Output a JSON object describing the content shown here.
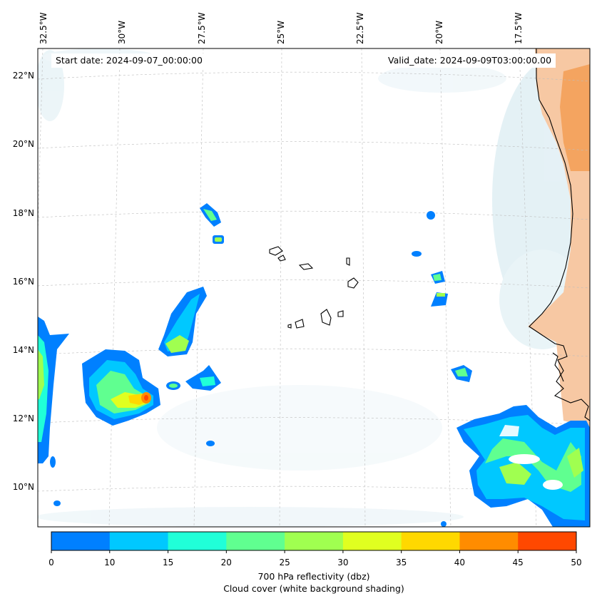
{
  "info": {
    "start_date": "Start date: 2024-09-07_00:00:00",
    "valid_date": "Valid_date: 2024-09-09T03:00:00.00"
  },
  "lon_labels": [
    "32.5°W",
    "30°W",
    "27.5°W",
    "25°W",
    "22.5°W",
    "20°W",
    "17.5°W"
  ],
  "lat_labels": [
    "22°N",
    "20°N",
    "18°N",
    "16°N",
    "14°N",
    "12°N",
    "10°N"
  ],
  "colorbar": {
    "ticks": [
      "0",
      "10",
      "15",
      "20",
      "25",
      "30",
      "35",
      "40",
      "45",
      "50"
    ],
    "colors": [
      "#0080ff",
      "#00c8ff",
      "#20ffd8",
      "#60ff90",
      "#a0ff50",
      "#e0ff20",
      "#ffd800",
      "#ff8c00",
      "#ff4800"
    ],
    "label_line1": "700 hPa reflectivity (dbz)",
    "label_line2": "Cloud cover (white background shading)"
  },
  "colors": {
    "land_warm": "#f4a460",
    "cloud_shade": "#d6e9ef",
    "coastline": "#000000"
  }
}
